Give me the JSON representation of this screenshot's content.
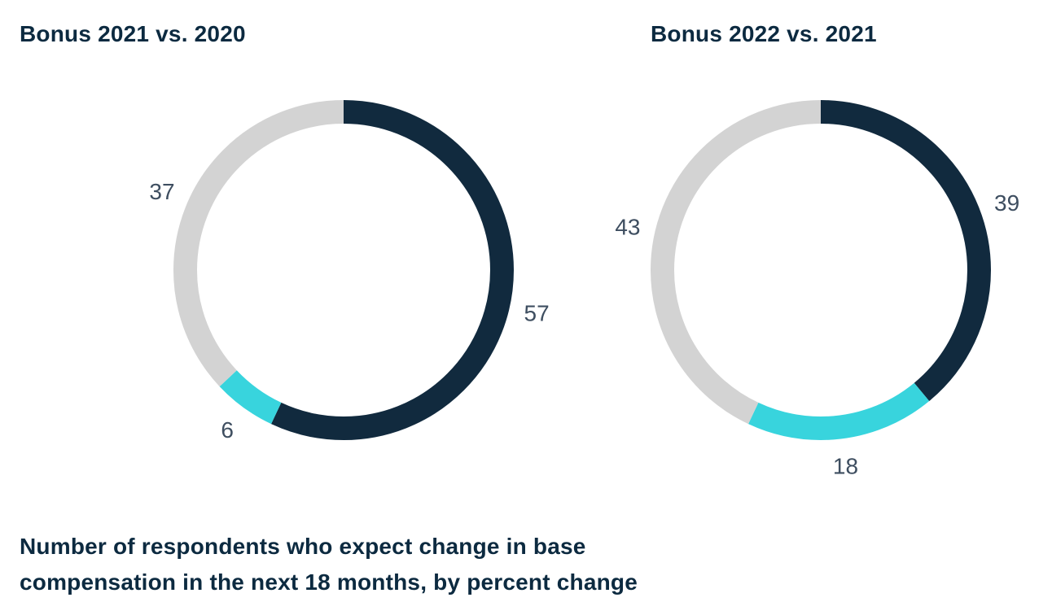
{
  "colors": {
    "navy": "#112a3e",
    "cyan": "#38d4dd",
    "gray": "#d3d3d3",
    "title_text": "#0c2a40",
    "label_text": "#3e4e60"
  },
  "chart_data": [
    {
      "type": "donut",
      "title": "Bonus 2021 vs. 2020",
      "total": 100,
      "start_angle_deg": 0,
      "direction": "clockwise",
      "legend": "none",
      "segments": [
        {
          "label": "57",
          "value": 57,
          "color_key": "navy"
        },
        {
          "label": "6",
          "value": 6,
          "color_key": "cyan"
        },
        {
          "label": "37",
          "value": 37,
          "color_key": "gray"
        }
      ]
    },
    {
      "type": "donut",
      "title": "Bonus 2022 vs. 2021",
      "total": 100,
      "start_angle_deg": 0,
      "direction": "clockwise",
      "legend": "none",
      "segments": [
        {
          "label": "39",
          "value": 39,
          "color_key": "navy"
        },
        {
          "label": "18",
          "value": 18,
          "color_key": "cyan"
        },
        {
          "label": "43",
          "value": 43,
          "color_key": "gray"
        }
      ]
    }
  ],
  "caption": {
    "lines": [
      "Number of respondents who expect change in base",
      "compensation in the next 18 months, by percent change"
    ]
  }
}
